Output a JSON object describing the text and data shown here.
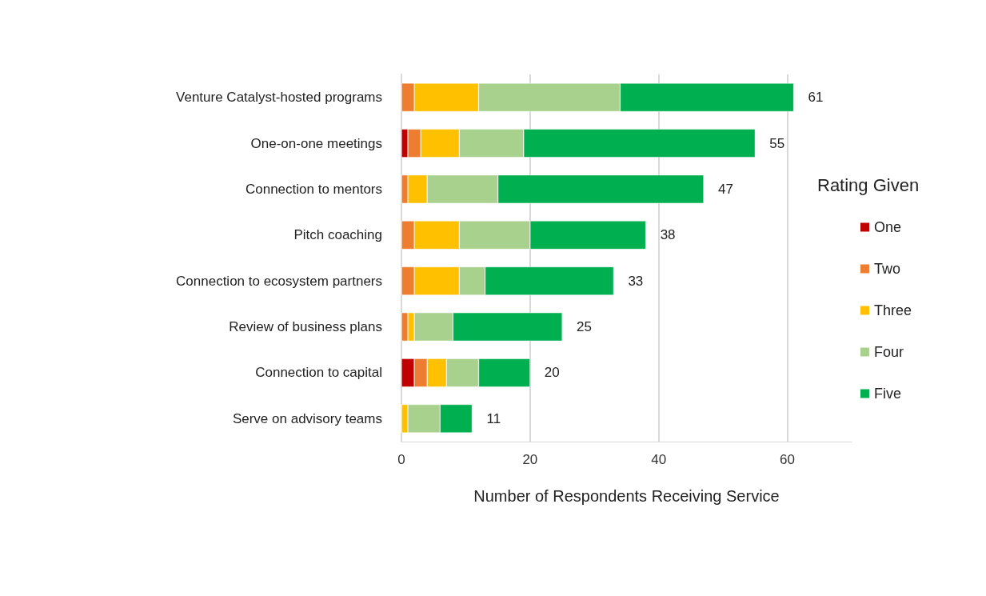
{
  "chart_data": {
    "type": "bar",
    "orientation": "horizontal",
    "stacked": true,
    "categories": [
      "Venture Catalyst-hosted programs",
      "One-on-one meetings",
      "Connection to mentors",
      "Pitch coaching",
      "Connection to ecosystem partners",
      "Review of business plans",
      "Connection to capital",
      "Serve on advisory teams"
    ],
    "series": [
      {
        "name": "One",
        "color": "#c00000",
        "values": [
          0,
          1,
          0,
          0,
          0,
          0,
          2,
          0
        ]
      },
      {
        "name": "Two",
        "color": "#ed7d31",
        "values": [
          2,
          2,
          1,
          2,
          2,
          1,
          2,
          0
        ]
      },
      {
        "name": "Three",
        "color": "#ffc000",
        "values": [
          10,
          6,
          3,
          7,
          7,
          1,
          3,
          1
        ]
      },
      {
        "name": "Four",
        "color": "#a9d18e",
        "values": [
          22,
          10,
          11,
          11,
          4,
          6,
          5,
          5
        ]
      },
      {
        "name": "Five",
        "color": "#00b050",
        "values": [
          27,
          36,
          32,
          18,
          20,
          17,
          8,
          5
        ]
      }
    ],
    "totals": [
      "61",
      "55",
      "47",
      "38",
      "33",
      "25",
      "20",
      "11"
    ],
    "xlim": [
      0,
      70
    ],
    "xticks": [
      0,
      20,
      40,
      60
    ],
    "xlabel": "Number of Respondents Receiving Service",
    "legend_title": "Rating Given",
    "legend": "right",
    "grid": "x"
  }
}
